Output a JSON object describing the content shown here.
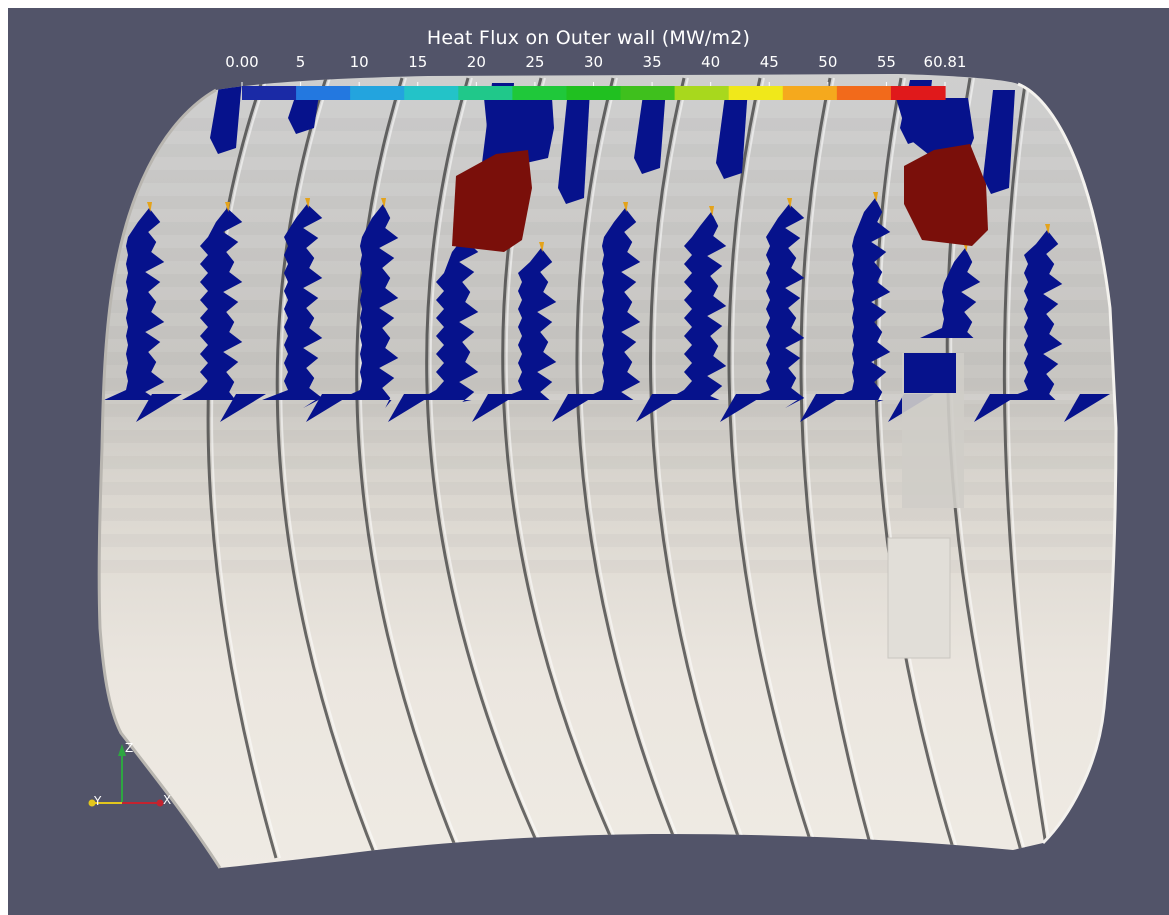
{
  "colorbar": {
    "title": "Heat Flux on Outer wall (MW/m2)",
    "min_label": "0.00",
    "max_label": "60.81",
    "tick_labels": [
      "0.00",
      "5",
      "10",
      "15",
      "20",
      "25",
      "30",
      "35",
      "40",
      "45",
      "50",
      "55",
      "60.81"
    ],
    "range": [
      0.0,
      60.81
    ],
    "colors": [
      "#1a2aa6",
      "#2378e0",
      "#23a4de",
      "#23c3c8",
      "#20c88a",
      "#1fc83a",
      "#20c020",
      "#3fc01d",
      "#a8d81d",
      "#f0e81a",
      "#f5a91d",
      "#f26a1b",
      "#e0191b"
    ]
  },
  "orientation_axes": {
    "x_label": "X",
    "y_label": "Y",
    "z_label": "Z",
    "x_color": "#c4232f",
    "y_color": "#e2c61d",
    "z_color": "#2ea641"
  },
  "scene": {
    "background": "#525469",
    "surface_color": "#e9e6df",
    "low_flux_color": "#06128c",
    "high_flux_color": "#7a0f0a",
    "panel_count": 12
  }
}
